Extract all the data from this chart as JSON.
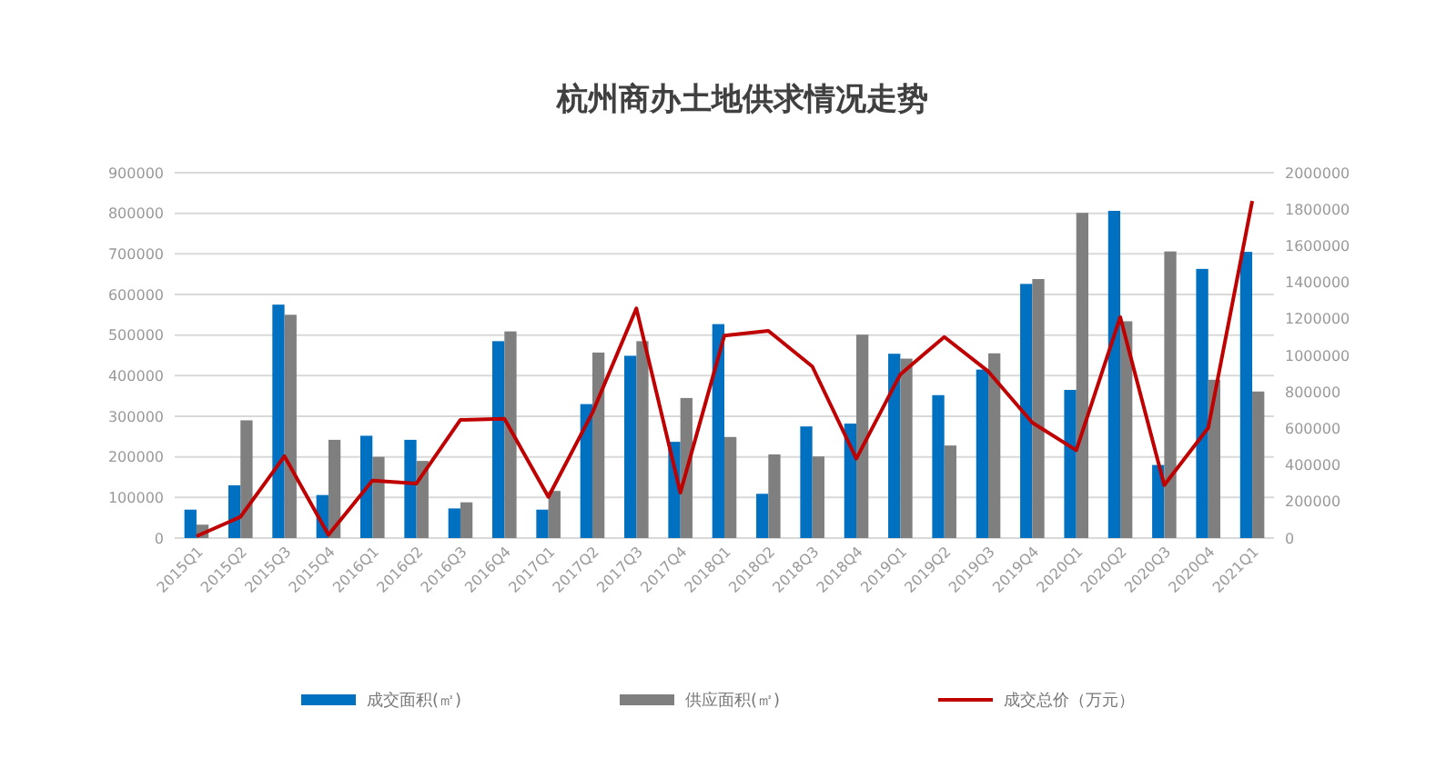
{
  "chart_data": {
    "type": "bar",
    "title": "杭州商办土地供求情况走势",
    "categories": [
      "2015Q1",
      "2015Q2",
      "2015Q3",
      "2015Q4",
      "2016Q1",
      "2016Q2",
      "2016Q3",
      "2016Q4",
      "2017Q1",
      "2017Q2",
      "2017Q3",
      "2017Q4",
      "2018Q1",
      "2018Q2",
      "2018Q3",
      "2018Q4",
      "2019Q1",
      "2019Q2",
      "2019Q3",
      "2019Q4",
      "2020Q1",
      "2020Q2",
      "2020Q3",
      "2020Q4",
      "2021Q1"
    ],
    "series": [
      {
        "name": "成交面积(㎡)",
        "color": "#0070c0",
        "values": [
          70000,
          130000,
          575000,
          106000,
          252000,
          242000,
          73000,
          485000,
          70000,
          330000,
          449000,
          237000,
          527000,
          109000,
          275000,
          282000,
          454000,
          352000,
          415000,
          626000,
          365000,
          806000,
          180000,
          663000,
          705000
        ]
      },
      {
        "name": "供应面积(㎡)",
        "color": "#7f7f7f",
        "values": [
          33000,
          290000,
          550000,
          242000,
          200000,
          190000,
          88000,
          509000,
          116000,
          457000,
          485000,
          345000,
          249000,
          206000,
          201000,
          501000,
          442000,
          228000,
          455000,
          638000,
          801000,
          534000,
          706000,
          390000,
          361000
        ]
      },
      {
        "name": "成交总价（万元）",
        "type": "line",
        "axis": "y2",
        "color": "#c00000",
        "values": [
          10000,
          116000,
          448000,
          17000,
          315000,
          299000,
          647000,
          653000,
          225000,
          686000,
          1257000,
          249000,
          1108000,
          1134000,
          939000,
          435000,
          896000,
          1101000,
          912000,
          632000,
          481000,
          1209000,
          290000,
          603000,
          1845000
        ]
      }
    ],
    "ylim": [
      0,
      900000
    ],
    "yticks": [
      0,
      100000,
      200000,
      300000,
      400000,
      500000,
      600000,
      700000,
      800000,
      900000
    ],
    "y2lim": [
      0,
      2000000
    ],
    "y2ticks": [
      0,
      200000,
      400000,
      600000,
      800000,
      1000000,
      1200000,
      1400000,
      1600000,
      1800000,
      2000000
    ],
    "grid": "y",
    "legend": "bottom",
    "marker": "none",
    "line_style": "solid"
  }
}
